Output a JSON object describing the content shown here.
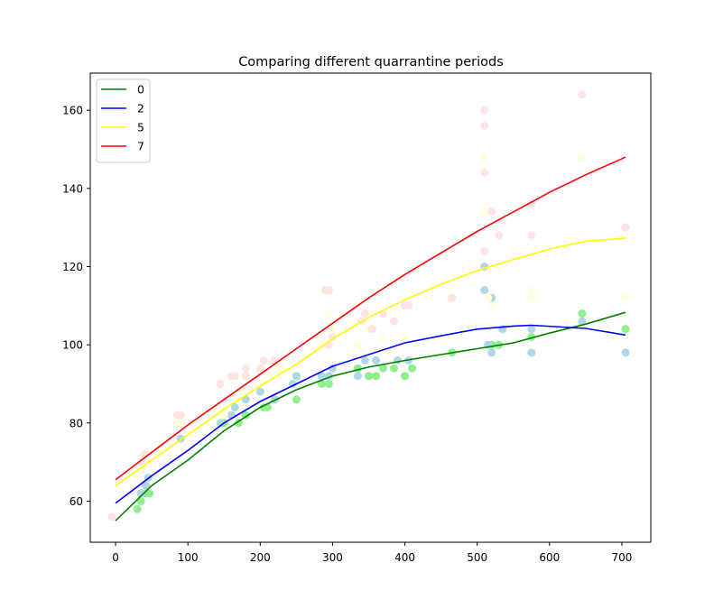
{
  "chart_data": {
    "type": "scatter",
    "title": "Comparing different quarrantine periods",
    "xlabel": "",
    "ylabel": "",
    "xlim": [
      -35,
      740
    ],
    "ylim": [
      49.5,
      169.5
    ],
    "x_ticks": [
      0,
      100,
      200,
      300,
      400,
      500,
      600,
      700
    ],
    "y_ticks": [
      60,
      80,
      100,
      120,
      140,
      160
    ],
    "grid": false,
    "legend": {
      "position": "top-left"
    },
    "series": [
      {
        "name": "0",
        "color": "#008000",
        "point_color": "#90ee90",
        "line": [
          [
            0,
            55
          ],
          [
            50,
            64
          ],
          [
            100,
            70.5
          ],
          [
            150,
            78
          ],
          [
            200,
            84
          ],
          [
            250,
            88.5
          ],
          [
            300,
            92
          ],
          [
            350,
            94.3
          ],
          [
            400,
            96
          ],
          [
            450,
            97.5
          ],
          [
            500,
            99
          ],
          [
            550,
            100.5
          ],
          [
            600,
            103
          ],
          [
            650,
            105.3
          ],
          [
            705,
            108.3
          ]
        ],
        "points": [
          [
            30,
            58
          ],
          [
            35,
            60
          ],
          [
            42,
            62
          ],
          [
            47,
            62
          ],
          [
            150,
            80
          ],
          [
            170,
            80
          ],
          [
            180,
            82
          ],
          [
            205,
            84
          ],
          [
            210,
            84
          ],
          [
            250,
            86
          ],
          [
            285,
            90
          ],
          [
            295,
            90
          ],
          [
            335,
            94
          ],
          [
            350,
            92
          ],
          [
            360,
            92
          ],
          [
            370,
            94
          ],
          [
            385,
            94
          ],
          [
            400,
            92
          ],
          [
            410,
            94
          ],
          [
            465,
            98
          ],
          [
            520,
            100
          ],
          [
            530,
            100
          ],
          [
            575,
            102
          ],
          [
            645,
            108
          ],
          [
            705,
            104
          ]
        ]
      },
      {
        "name": "2",
        "color": "#0000ff",
        "point_color": "#add8e6",
        "line": [
          [
            0,
            59.5
          ],
          [
            50,
            66.5
          ],
          [
            100,
            73
          ],
          [
            150,
            80
          ],
          [
            200,
            85.5
          ],
          [
            250,
            90
          ],
          [
            300,
            94.5
          ],
          [
            350,
            97.5
          ],
          [
            400,
            100.5
          ],
          [
            450,
            102.3
          ],
          [
            500,
            104
          ],
          [
            550,
            104.8
          ],
          [
            575,
            105
          ],
          [
            650,
            104.2
          ],
          [
            705,
            102.5
          ]
        ],
        "points": [
          [
            35,
            62
          ],
          [
            42,
            64
          ],
          [
            45,
            66
          ],
          [
            90,
            76
          ],
          [
            145,
            80
          ],
          [
            160,
            82
          ],
          [
            165,
            84
          ],
          [
            180,
            86
          ],
          [
            200,
            88
          ],
          [
            220,
            86
          ],
          [
            245,
            90
          ],
          [
            250,
            92
          ],
          [
            285,
            92
          ],
          [
            295,
            92
          ],
          [
            300,
            94
          ],
          [
            335,
            92
          ],
          [
            345,
            96
          ],
          [
            360,
            96
          ],
          [
            390,
            96
          ],
          [
            405,
            96
          ],
          [
            510,
            114
          ],
          [
            510,
            120
          ],
          [
            515,
            100
          ],
          [
            520,
            112
          ],
          [
            520,
            98
          ],
          [
            535,
            104
          ],
          [
            575,
            98
          ],
          [
            575,
            104
          ],
          [
            645,
            106
          ],
          [
            705,
            98
          ]
        ]
      },
      {
        "name": "5",
        "color": "#ffff00",
        "point_color": "#ffffe0",
        "line": [
          [
            0,
            64
          ],
          [
            50,
            70.5
          ],
          [
            100,
            77
          ],
          [
            150,
            83.5
          ],
          [
            200,
            89.5
          ],
          [
            250,
            95
          ],
          [
            300,
            101.5
          ],
          [
            350,
            107
          ],
          [
            400,
            111.5
          ],
          [
            450,
            115.5
          ],
          [
            500,
            119
          ],
          [
            550,
            121.8
          ],
          [
            600,
            124.5
          ],
          [
            650,
            126.5
          ],
          [
            705,
            127.3
          ]
        ],
        "points": [
          [
            35,
            68
          ],
          [
            45,
            70
          ],
          [
            85,
            80
          ],
          [
            90,
            80
          ],
          [
            150,
            82
          ],
          [
            165,
            86
          ],
          [
            175,
            88
          ],
          [
            200,
            90
          ],
          [
            215,
            92
          ],
          [
            230,
            94
          ],
          [
            285,
            100
          ],
          [
            295,
            108
          ],
          [
            300,
            104
          ],
          [
            335,
            100
          ],
          [
            350,
            104
          ],
          [
            370,
            102
          ],
          [
            385,
            106
          ],
          [
            400,
            102
          ],
          [
            510,
            134
          ],
          [
            510,
            148
          ],
          [
            515,
            112
          ],
          [
            520,
            110
          ],
          [
            530,
            120
          ],
          [
            575,
            112
          ],
          [
            575,
            114
          ],
          [
            645,
            148
          ],
          [
            705,
            112
          ]
        ]
      },
      {
        "name": "7",
        "color": "#ff0000",
        "point_color": "#ffe4e1",
        "line": [
          [
            0,
            65.5
          ],
          [
            50,
            72.5
          ],
          [
            100,
            79.5
          ],
          [
            150,
            86
          ],
          [
            200,
            92.5
          ],
          [
            250,
            99
          ],
          [
            300,
            105.5
          ],
          [
            350,
            112
          ],
          [
            400,
            118
          ],
          [
            450,
            123.5
          ],
          [
            500,
            129
          ],
          [
            550,
            134
          ],
          [
            600,
            139
          ],
          [
            650,
            143.5
          ],
          [
            705,
            148
          ]
        ],
        "points": [
          [
            -5,
            56
          ],
          [
            35,
            70
          ],
          [
            40,
            72
          ],
          [
            85,
            82
          ],
          [
            90,
            82
          ],
          [
            145,
            90
          ],
          [
            160,
            92
          ],
          [
            165,
            92
          ],
          [
            180,
            92
          ],
          [
            180,
            94
          ],
          [
            200,
            94
          ],
          [
            205,
            96
          ],
          [
            220,
            96
          ],
          [
            290,
            114
          ],
          [
            295,
            114
          ],
          [
            295,
            100
          ],
          [
            300,
            102
          ],
          [
            340,
            106
          ],
          [
            345,
            108
          ],
          [
            355,
            104
          ],
          [
            370,
            108
          ],
          [
            385,
            106
          ],
          [
            400,
            110
          ],
          [
            405,
            110
          ],
          [
            465,
            112
          ],
          [
            510,
            160
          ],
          [
            510,
            156
          ],
          [
            510,
            144
          ],
          [
            510,
            124
          ],
          [
            520,
            134
          ],
          [
            530,
            128
          ],
          [
            575,
            128
          ],
          [
            575,
            136
          ],
          [
            645,
            164
          ],
          [
            705,
            130
          ]
        ]
      }
    ]
  }
}
